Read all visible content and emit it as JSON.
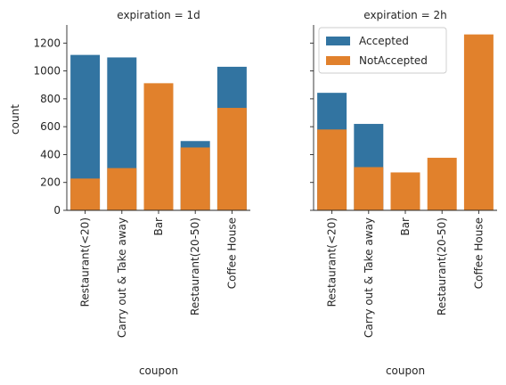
{
  "chart_data": {
    "type": "bar",
    "layout": "faceted-stacked-overlay",
    "categories": [
      "Restaurant(<20)",
      "Carry out & Take away",
      "Bar",
      "Restaurant(20-50)",
      "Coffee House"
    ],
    "xlabel": "coupon",
    "ylabel": "count",
    "ylim": [
      0,
      1330
    ],
    "yticks": [
      0,
      200,
      400,
      600,
      800,
      1000,
      1200
    ],
    "sharey": true,
    "colors": {
      "Accepted": "#3274a1",
      "NotAccepted": "#e1812c"
    },
    "legend": {
      "placement": "top-left",
      "panel": 1,
      "entries": [
        "Accepted",
        "NotAccepted"
      ]
    },
    "panels": [
      {
        "title": "expiration = 1d",
        "series": [
          {
            "name": "Accepted",
            "values": [
              1115,
              1097,
              0,
              497,
              1030
            ]
          },
          {
            "name": "NotAccepted",
            "values": [
              228,
              303,
              912,
              451,
              735
            ]
          }
        ]
      },
      {
        "title": "expiration = 2h",
        "series": [
          {
            "name": "Accepted",
            "values": [
              843,
              620,
              0,
              0,
              0
            ]
          },
          {
            "name": "NotAccepted",
            "values": [
              580,
              310,
              272,
              377,
              1262
            ]
          }
        ]
      }
    ]
  }
}
